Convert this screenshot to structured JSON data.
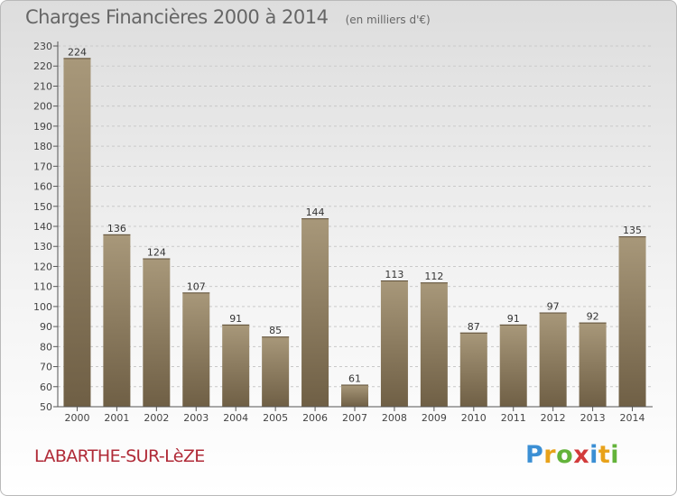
{
  "title": "Charges Financières 2000 à 2014",
  "unit": "(en milliers d'€)",
  "commune": "LABARTHE-SUR-LèZE",
  "logo": {
    "letters": [
      "P",
      "r",
      "o",
      "x",
      "i",
      "t",
      "i"
    ],
    "colors": [
      "#3b8fd4",
      "#e8a21a",
      "#63b33a",
      "#d23b3b",
      "#3b8fd4",
      "#e8a21a",
      "#63b33a"
    ]
  },
  "colors": {
    "bar": "#8a785a",
    "bar_top": "#a8987a",
    "bar_bottom": "#6f5f45",
    "grid": "#c9c9c9",
    "axis": "#555555"
  },
  "chart_data": {
    "type": "bar",
    "categories": [
      "2000",
      "2001",
      "2002",
      "2003",
      "2004",
      "2005",
      "2006",
      "2007",
      "2008",
      "2009",
      "2010",
      "2011",
      "2012",
      "2013",
      "2014"
    ],
    "values": [
      224,
      136,
      124,
      107,
      91,
      85,
      144,
      61,
      113,
      112,
      87,
      91,
      97,
      92,
      135
    ],
    "title": "Charges Financières 2000 à 2014",
    "xlabel": "",
    "ylabel": "",
    "ylim": [
      50,
      230
    ],
    "yticks": [
      50,
      60,
      70,
      80,
      90,
      100,
      110,
      120,
      130,
      140,
      150,
      160,
      170,
      180,
      190,
      200,
      210,
      220,
      230
    ],
    "grid": true,
    "legend": "none"
  }
}
